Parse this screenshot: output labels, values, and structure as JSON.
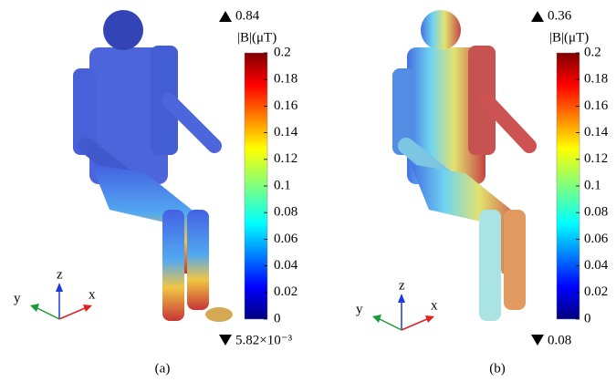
{
  "panels": [
    {
      "caption": "(a)",
      "max_label": "0.84",
      "unit": "|B|(μT)",
      "min_label": "5.82×10⁻³",
      "colorbar": {
        "lim": [
          0,
          0.2
        ],
        "ticks": [
          0,
          0.02,
          0.04,
          0.06,
          0.08,
          0.1,
          0.12,
          0.14,
          0.16,
          0.18,
          0.2
        ]
      },
      "axes": {
        "x": "x",
        "y": "y",
        "z": "z"
      }
    },
    {
      "caption": "(b)",
      "max_label": "0.36",
      "unit": "|B|(μT)",
      "min_label": "0.08",
      "colorbar": {
        "lim": [
          0,
          0.2
        ],
        "ticks": [
          0,
          0.02,
          0.04,
          0.06,
          0.08,
          0.1,
          0.12,
          0.14,
          0.16,
          0.18,
          0.2
        ]
      },
      "axes": {
        "x": "x",
        "y": "y",
        "z": "z"
      }
    }
  ]
}
